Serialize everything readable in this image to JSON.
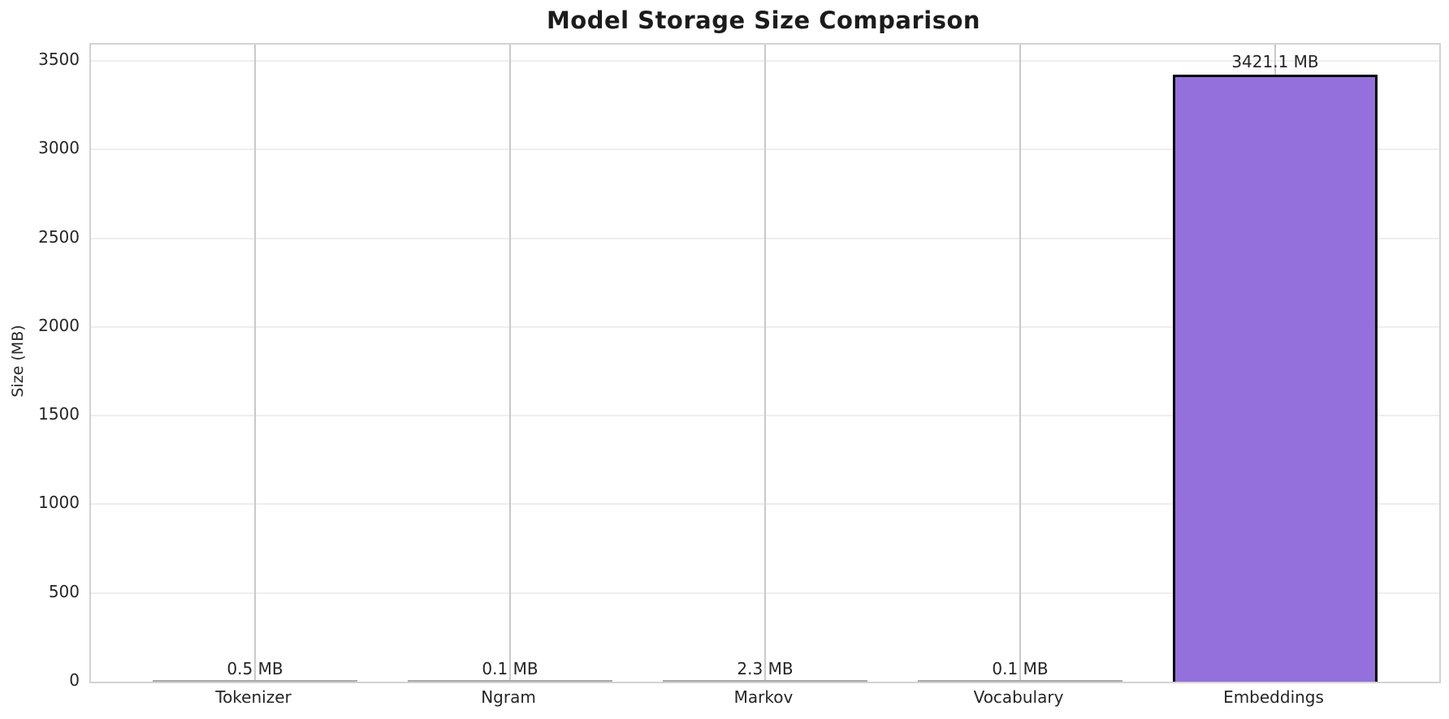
{
  "title": "Model Storage Size Comparison",
  "chart_data": {
    "type": "bar",
    "title": "Model Storage Size Comparison",
    "xlabel": "",
    "ylabel": "Size (MB)",
    "categories": [
      "Tokenizer",
      "Ngram",
      "Markov",
      "Vocabulary",
      "Embeddings"
    ],
    "values": [
      0.5,
      0.1,
      2.3,
      0.1,
      3421.1
    ],
    "bar_labels": [
      "0.5 MB",
      "0.1 MB",
      "2.3 MB",
      "0.1 MB",
      "3421.1 MB"
    ],
    "yticks": [
      0,
      500,
      1000,
      1500,
      2000,
      2500,
      3000,
      3500
    ],
    "ylim": [
      0,
      3592.2
    ],
    "grid": "both",
    "legend": "none",
    "bar_color": "#9370DB",
    "bar_edge_color": "#000000"
  }
}
